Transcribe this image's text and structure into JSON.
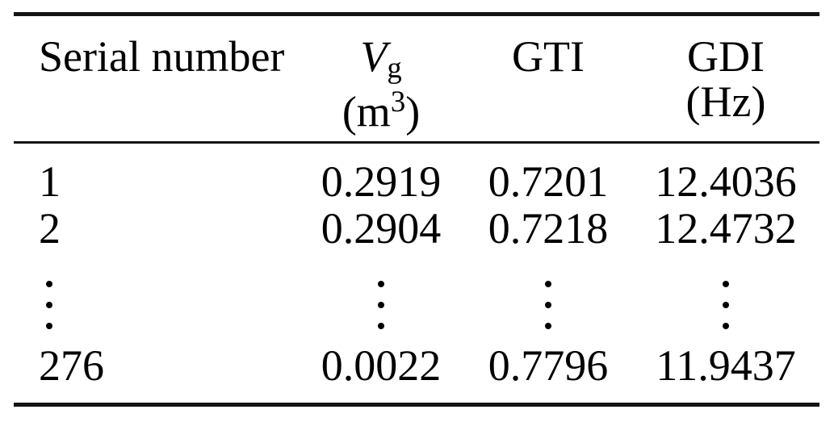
{
  "table": {
    "columns": {
      "serial": {
        "label": "Serial number"
      },
      "vg": {
        "symbol": "V",
        "subscript": "g",
        "unit_open": "(m",
        "unit_exp": "3",
        "unit_close": ")"
      },
      "gti": {
        "label": "GTI"
      },
      "gdi": {
        "label": "GDI",
        "unit": "(Hz)"
      }
    },
    "rows": [
      {
        "serial": "1",
        "vg": "0.2919",
        "gti": "0.7201",
        "gdi": "12.4036"
      },
      {
        "serial": "2",
        "vg": "0.2904",
        "gti": "0.7218",
        "gdi": "12.4732"
      },
      {
        "serial": "276",
        "vg": "0.0022",
        "gti": "0.7796",
        "gdi": "11.9437"
      }
    ]
  },
  "icons": {
    "vertical_ellipsis": "⋮"
  },
  "colors": {
    "background": "#ffffff",
    "text": "#000000",
    "rule": "#141414"
  }
}
